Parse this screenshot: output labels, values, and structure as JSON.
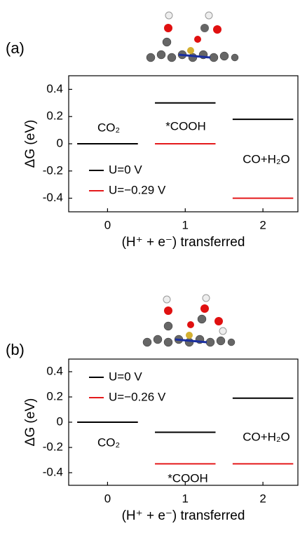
{
  "chart_data": [
    {
      "type": "step",
      "panel_label": "(a)",
      "ylabel": "ΔG (eV)",
      "xlabel": "(H⁺ + e⁻) transferred",
      "xlim": [
        -0.5,
        2.45
      ],
      "xticks": [
        0,
        1,
        2
      ],
      "ylim": [
        -0.5,
        0.5
      ],
      "yticks": [
        -0.4,
        -0.2,
        0,
        0.2,
        0.4
      ],
      "annotations": [
        "CO₂",
        "*COOH",
        "CO+H₂O"
      ],
      "series": [
        {
          "name": "U=−0.29 V",
          "color": "#e41a1c",
          "values": [
            0,
            0,
            -0.4
          ]
        },
        {
          "name": "U=0 V",
          "color": "#000000",
          "values": [
            0,
            0.3,
            0.18
          ]
        }
      ]
    },
    {
      "type": "step",
      "panel_label": "(b)",
      "ylabel": "ΔG (eV)",
      "xlabel": "(H⁺ + e⁻) transferred",
      "xlim": [
        -0.5,
        2.45
      ],
      "xticks": [
        0,
        1,
        2
      ],
      "ylim": [
        -0.5,
        0.5
      ],
      "yticks": [
        -0.4,
        -0.2,
        0,
        0.2,
        0.4
      ],
      "annotations": [
        "CO₂",
        "*COOH",
        "CO+H₂O"
      ],
      "series": [
        {
          "name": "U=−0.26 V",
          "color": "#e41a1c",
          "values": [
            0,
            -0.33,
            -0.33
          ]
        },
        {
          "name": "U=0 V",
          "color": "#000000",
          "values": [
            0,
            -0.08,
            0.19
          ]
        }
      ]
    }
  ]
}
